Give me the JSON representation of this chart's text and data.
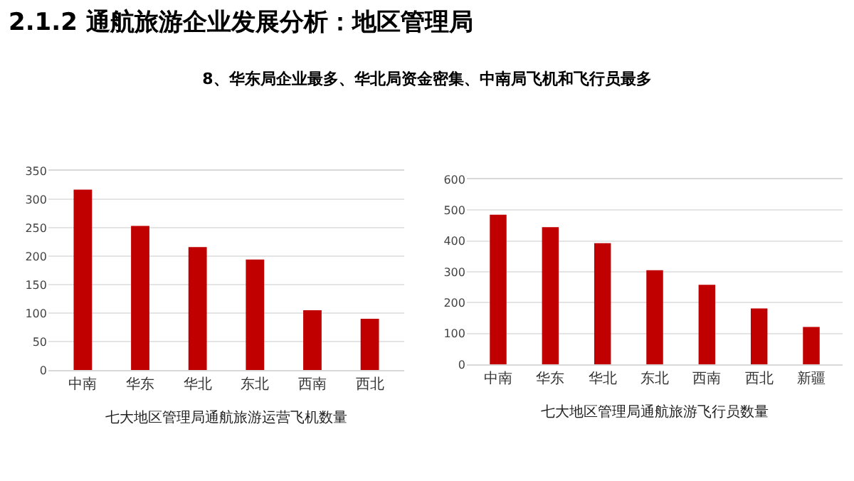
{
  "chart_data": [
    {
      "type": "bar",
      "title": "2.1.2  通航旅游企业发展分析：地区管理局",
      "subtitle": "8、华东局企业最多、华北局资金密集、中南局飞机和飞行员最多",
      "xlabel": "七大地区管理局通航旅游运营飞机数量",
      "categories": [
        "中南",
        "华东",
        "华北",
        "东北",
        "西南",
        "西北"
      ],
      "series": [
        {
          "color": "#c00000",
          "values": [
            317,
            253,
            216,
            194,
            105,
            90
          ]
        }
      ],
      "ylim": [
        0,
        350
      ],
      "yticks": [
        0,
        50,
        100,
        150,
        200,
        250,
        300,
        350
      ],
      "grid": "y"
    },
    {
      "type": "bar",
      "xlabel": "七大地区管理局通航旅游飞行员数量",
      "categories": [
        "中南",
        "华东",
        "华北",
        "东北",
        "西南",
        "西北",
        "新疆"
      ],
      "series": [
        {
          "color": "#c00000",
          "values": [
            485,
            445,
            393,
            305,
            258,
            181,
            121
          ]
        }
      ],
      "ylim": [
        0,
        600
      ],
      "yticks": [
        0,
        100,
        200,
        300,
        400,
        500,
        600
      ],
      "grid": "y"
    }
  ]
}
